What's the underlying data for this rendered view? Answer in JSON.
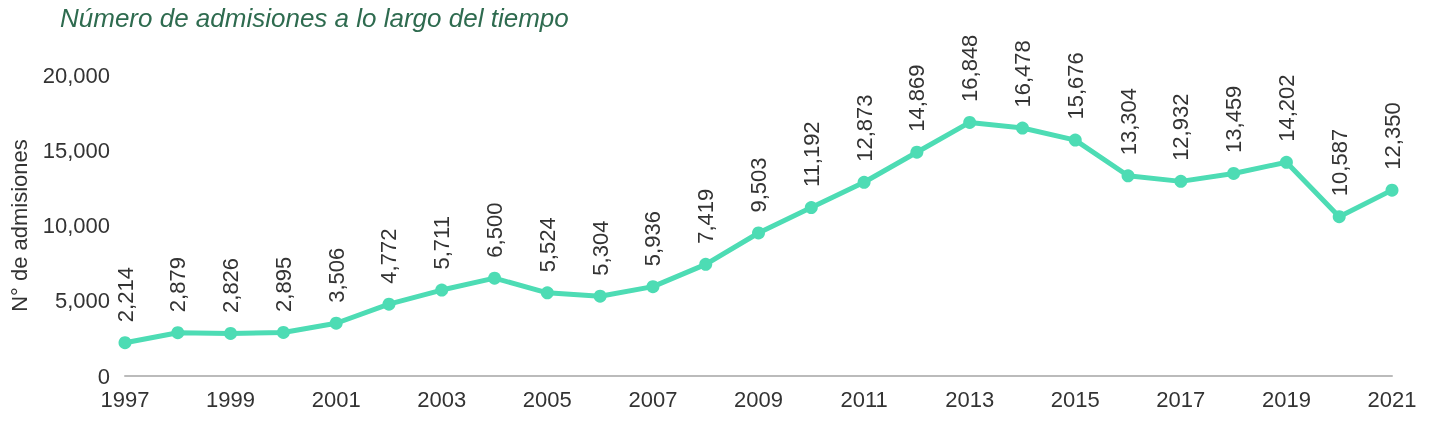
{
  "chart_data": {
    "type": "line",
    "title": "Número de admisiones a lo largo del tiempo",
    "ylabel": "N° de admisiones",
    "x": [
      1997,
      1998,
      1999,
      2000,
      2001,
      2002,
      2003,
      2004,
      2005,
      2006,
      2007,
      2008,
      2009,
      2010,
      2011,
      2012,
      2013,
      2014,
      2015,
      2016,
      2017,
      2018,
      2019,
      2020,
      2021
    ],
    "series": [
      {
        "color": "#4ddcb4",
        "values": [
          2214,
          2879,
          2826,
          2895,
          3506,
          4772,
          5711,
          6500,
          5524,
          5304,
          5936,
          7419,
          9503,
          11192,
          12873,
          14869,
          16848,
          16478,
          15676,
          13304,
          12932,
          13459,
          14202,
          10587,
          12350
        ],
        "value_labels": [
          "2,214",
          "2,879",
          "2,826",
          "2,895",
          "3,506",
          "4,772",
          "5,711",
          "6,500",
          "5,524",
          "5,304",
          "5,936",
          "7,419",
          "9,503",
          "11,192",
          "12,873",
          "14,869",
          "16,848",
          "16,478",
          "15,676",
          "13,304",
          "12,932",
          "13,459",
          "14,202",
          "10,587",
          "12,350"
        ]
      }
    ],
    "xlim": [
      1997,
      2021
    ],
    "xticks": [
      1997,
      1999,
      2001,
      2003,
      2005,
      2007,
      2009,
      2011,
      2013,
      2015,
      2017,
      2019,
      2021
    ],
    "ylim": [
      0,
      20000
    ],
    "yticks": [
      0,
      {
        "value": 5000,
        "label": "5,000"
      },
      {
        "value": 10000,
        "label": "10,000"
      },
      {
        "value": 15000,
        "label": "15,000"
      },
      {
        "value": 20000,
        "label": "20,000"
      }
    ],
    "grid": false,
    "marker": "circle",
    "line_style": "solid"
  }
}
